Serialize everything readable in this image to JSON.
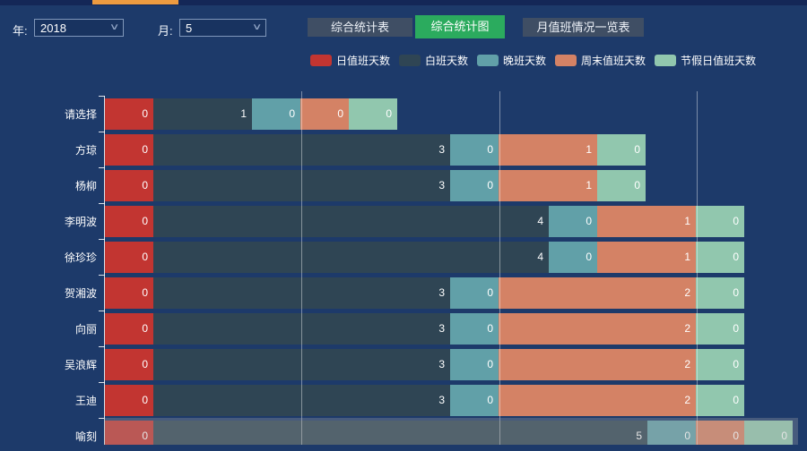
{
  "header": {
    "year_label": "年:",
    "year_value": "2018",
    "month_label": "月:",
    "month_value": "5",
    "buttons": [
      {
        "label": "综合统计表",
        "active": false
      },
      {
        "label": "综合统计图",
        "active": true
      },
      {
        "label": "月值班情况一览表",
        "active": false
      }
    ]
  },
  "colors": {
    "background": "#1d3a6a",
    "top_strip": "#142757",
    "accent_tab": "#ed9b40",
    "button_gray": "#3f4e64",
    "button_active_green": "#2bab5e",
    "axis": "#ffffff"
  },
  "chart_data": {
    "type": "bar",
    "orientation": "horizontal",
    "stacked": true,
    "title": "",
    "xlabel": "",
    "ylabel": "",
    "xlim": [
      0,
      7
    ],
    "gridline_values": [
      2,
      4,
      6
    ],
    "legend_position": "top",
    "axis_pointer": "shadow",
    "highlighted_category": "喻刻",
    "categories": [
      "请选择",
      "方琼",
      "杨柳",
      "李明波",
      "徐珍珍",
      "贺湘波",
      "向丽",
      "吴浪辉",
      "王迪",
      "喻刻"
    ],
    "series": [
      {
        "name": "日值班天数",
        "color": "#c23531",
        "values": [
          0,
          0,
          0,
          0,
          0,
          0,
          0,
          0,
          0,
          0
        ]
      },
      {
        "name": "白班天数",
        "color": "#2f4554",
        "values": [
          1,
          3,
          3,
          4,
          4,
          3,
          3,
          3,
          3,
          5
        ]
      },
      {
        "name": "晚班天数",
        "color": "#61a0a8",
        "values": [
          0,
          0,
          0,
          0,
          0,
          0,
          0,
          0,
          0,
          0
        ]
      },
      {
        "name": "周末值班天数",
        "color": "#d48265",
        "values": [
          0,
          1,
          1,
          1,
          1,
          2,
          2,
          2,
          2,
          0
        ]
      },
      {
        "name": "节假日值班天数",
        "color": "#91c7ae",
        "values": [
          0,
          0,
          0,
          0,
          0,
          0,
          0,
          0,
          0,
          0
        ]
      }
    ]
  }
}
